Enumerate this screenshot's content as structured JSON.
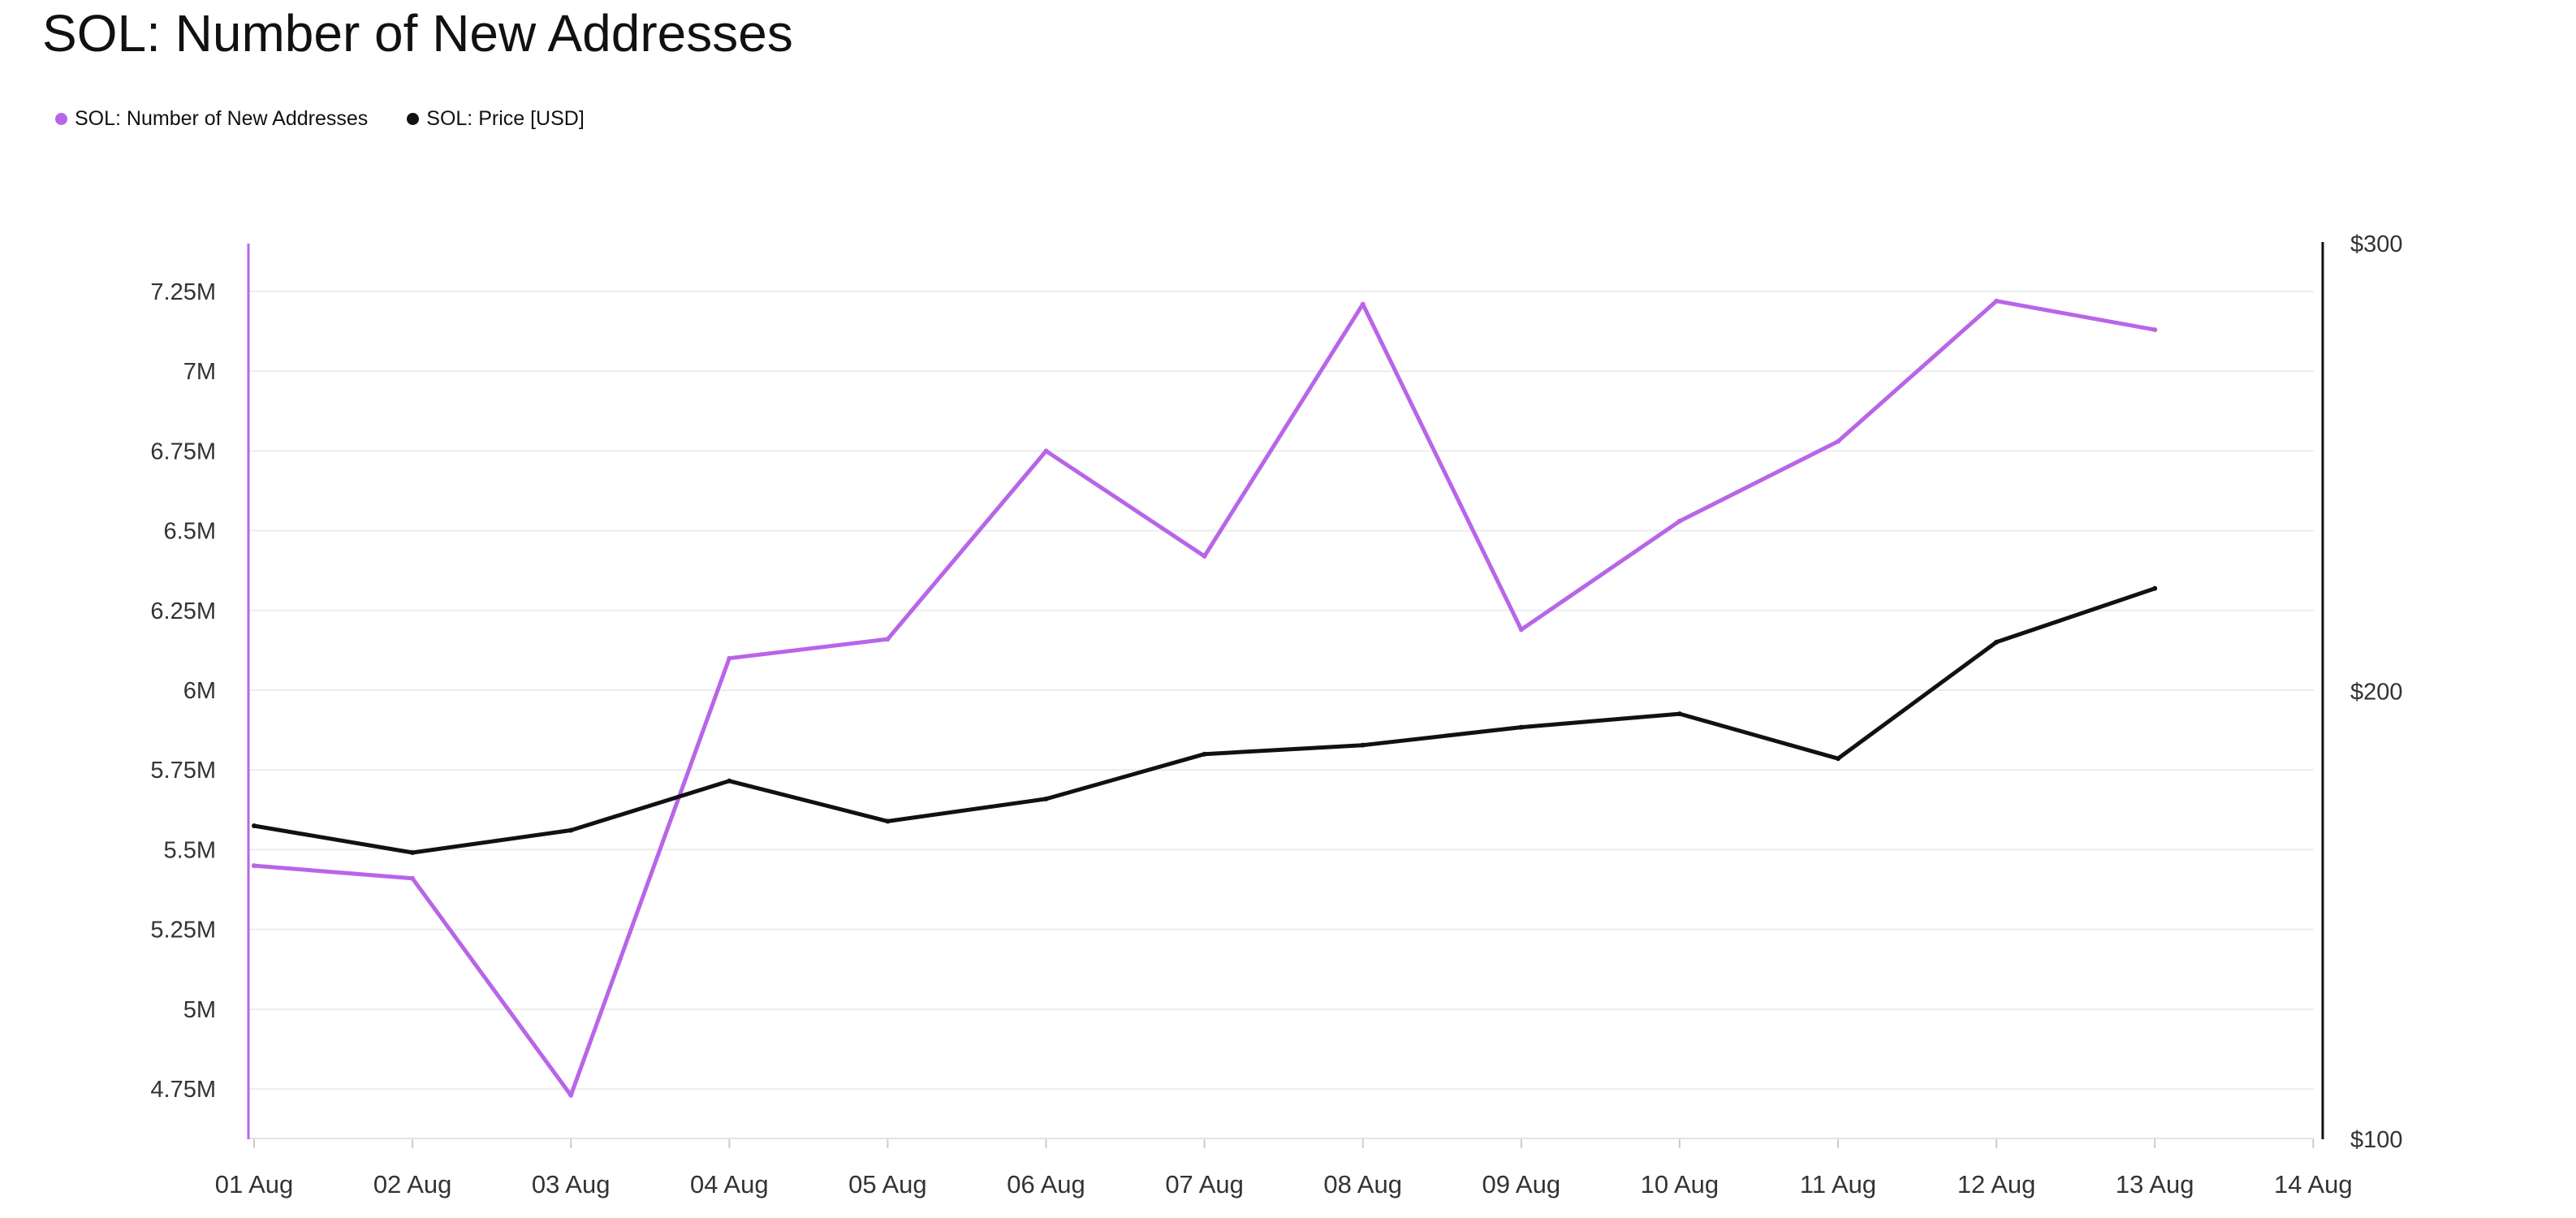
{
  "title": "SOL: Number of New Addresses",
  "colors": {
    "addresses": "#b865e8",
    "price": "#111111",
    "grid": "#ececec",
    "tick_text": "#333333"
  },
  "chart_data": {
    "type": "line",
    "title": "SOL: Number of New Addresses",
    "x": [
      "01 Aug",
      "02 Aug",
      "03 Aug",
      "04 Aug",
      "05 Aug",
      "06 Aug",
      "07 Aug",
      "08 Aug",
      "09 Aug",
      "10 Aug",
      "11 Aug",
      "12 Aug",
      "13 Aug"
    ],
    "x_tick_labels": [
      "01 Aug",
      "02 Aug",
      "03 Aug",
      "04 Aug",
      "05 Aug",
      "06 Aug",
      "07 Aug",
      "08 Aug",
      "09 Aug",
      "10 Aug",
      "11 Aug",
      "12 Aug",
      "13 Aug",
      "14 Aug"
    ],
    "series": [
      {
        "name": "SOL: Number of New Addresses",
        "axis": "left",
        "color": "#b865e8",
        "values": [
          5450000,
          5410000,
          4730000,
          6100000,
          6160000,
          6750000,
          6420000,
          7210000,
          6190000,
          6530000,
          6780000,
          7220000,
          7130000
        ]
      },
      {
        "name": "SOL: Price [USD]",
        "axis": "right",
        "color": "#111111",
        "values": [
          170,
          164,
          169,
          180,
          171,
          176,
          186,
          188,
          192,
          195,
          185,
          211,
          223
        ]
      }
    ],
    "y_left": {
      "ticks": [
        4750000,
        5000000,
        5250000,
        5500000,
        5750000,
        6000000,
        6250000,
        6500000,
        6750000,
        7000000,
        7250000
      ],
      "tick_labels": [
        "4.75M",
        "5M",
        "5.25M",
        "5.5M",
        "5.75M",
        "6M",
        "6.25M",
        "6.5M",
        "6.75M",
        "7M",
        "7.25M"
      ],
      "range": [
        4600000,
        7400000
      ]
    },
    "y_right": {
      "ticks": [
        100,
        200,
        300
      ],
      "tick_labels": [
        "$100",
        "$200",
        "$300"
      ],
      "range": [
        100,
        300
      ]
    },
    "grid": true,
    "legend_position": "top-left"
  }
}
